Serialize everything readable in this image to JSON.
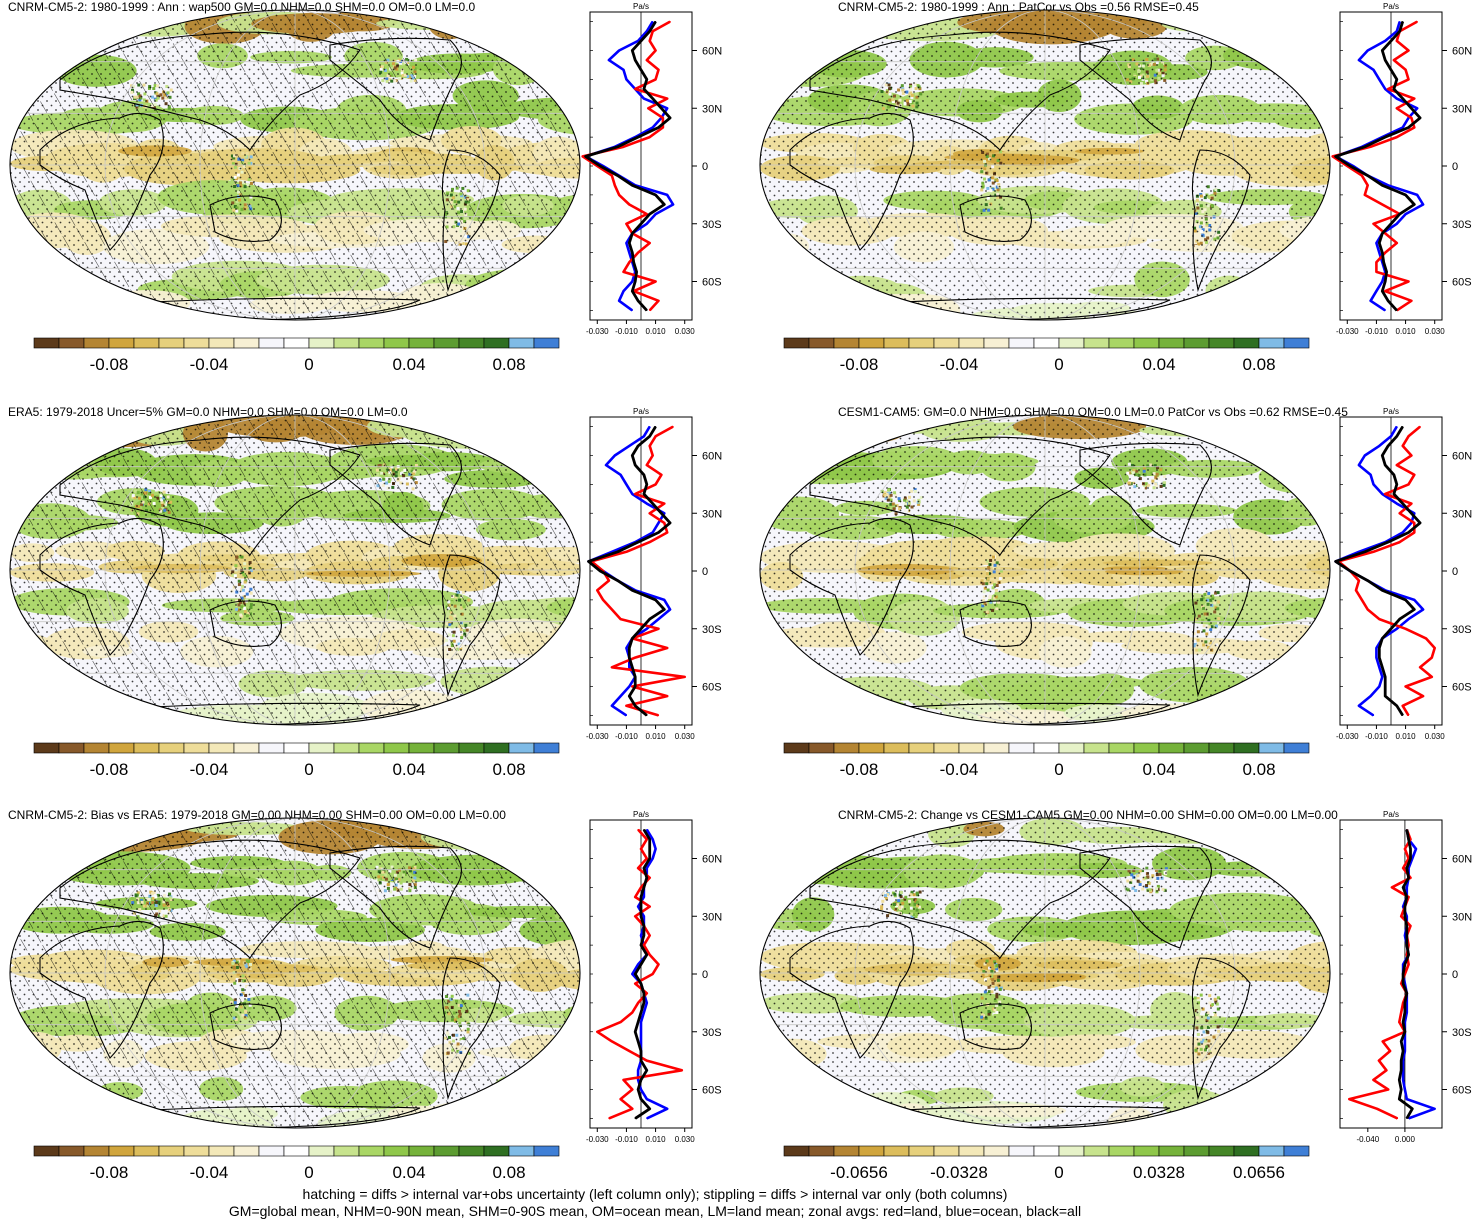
{
  "colors": {
    "palette": [
      "#5c3a1a",
      "#87592a",
      "#b48533",
      "#d0a53d",
      "#dcbd5c",
      "#e6d07c",
      "#eedd9a",
      "#f3e8b8",
      "#f7f0d4",
      "#f6f6fb",
      "#ffffff",
      "#e6f2c8",
      "#c7e38d",
      "#a9d665",
      "#8fc74a",
      "#75b23a",
      "#5c9c31",
      "#458627",
      "#2f6f22",
      "#7fbbe6",
      "#3f7fd6"
    ],
    "land": "#ff0000",
    "ocean": "#0000ff",
    "all": "#000000",
    "coast": "#000000",
    "grid": "#c8c8c8"
  },
  "zonal_unit": "Pa/s",
  "lat_ticks": [
    "60N",
    "30N",
    "0",
    "30S",
    "60S"
  ],
  "zonal_ticks_std": [
    "-0.030",
    "-0.010",
    "0.010",
    "0.030"
  ],
  "zonal_ticks_change": [
    "-0.040",
    "0.000"
  ],
  "colorbar_labels_std": [
    "-0.08",
    "-0.04",
    "0",
    "0.04",
    "0.08"
  ],
  "colorbar_labels_change": [
    "-0.0656",
    "-0.0328",
    "0",
    "0.0328",
    "0.0656"
  ],
  "panels": [
    {
      "title": "CNRM-CM5-2: 1980-1999 : Ann : wap500 GM=0.0 NHM=0.0 SHM=0.0 OM=0.0 LM=0.0",
      "hatch": true,
      "stipple": true
    },
    {
      "title": "CNRM-CM5-2: 1980-1999 : Ann : PatCor vs Obs =0.56 RMSE=0.45",
      "hatch": false,
      "stipple": true
    },
    {
      "title": "ERA5: 1979-2018 Uncer=5% GM=0.0 NHM=0.0 SHM=0.0 OM=0.0 LM=0.0",
      "hatch": true,
      "stipple": true
    },
    {
      "title": "CESM1-CAM5: GM=0.0 NHM=0.0 SHM=0.0 OM=0.0 LM=0.0 PatCor vs Obs =0.62 RMSE=0.45",
      "hatch": false,
      "stipple": true
    },
    {
      "title": "CNRM-CM5-2: Bias vs ERA5: 1979-2018 GM=0.00 NHM=0.00 SHM=0.00 OM=0.00 LM=0.00",
      "hatch": true,
      "stipple": true
    },
    {
      "title": "CNRM-CM5-2: Change vs CESM1-CAM5 GM=0.00 NHM=0.00 SHM=0.00 OM=0.00 LM=0.00",
      "hatch": false,
      "stipple": true
    }
  ],
  "footer": {
    "line1": "hatching = diffs > internal var+obs uncertainty (left column only); stippling = diffs > internal var only (both columns)",
    "line2": "GM=global mean, NHM=0-90N mean, SHM=0-90S mean, OM=ocean mean, LM=land mean; zonal avgs: red=land, blue=ocean, black=all"
  },
  "chart_data": [
    {
      "type": "line",
      "title": "CNRM-CM5-2: 1980-1999 : Ann : wap500 GM=0.0 NHM=0.0 SHM=0.0 OM=0.0 LM=0.0",
      "xlabel": "Pa/s",
      "xlim": [
        -0.035,
        0.035
      ],
      "ylim": [
        -80,
        80
      ],
      "lat": [
        75,
        70,
        65,
        60,
        55,
        50,
        45,
        40,
        35,
        30,
        25,
        20,
        15,
        10,
        5,
        0,
        -5,
        -10,
        -15,
        -20,
        -25,
        -30,
        -35,
        -40,
        -45,
        -50,
        -55,
        -60,
        -65,
        -70,
        -75
      ],
      "series": [
        {
          "name": "land",
          "values": [
            0.02,
            0.008,
            0.006,
            0.01,
            0.004,
            0.012,
            0.01,
            -0.004,
            0.018,
            0.005,
            0.015,
            0.015,
            0.006,
            -0.012,
            -0.04,
            -0.03,
            -0.02,
            -0.018,
            -0.015,
            -0.008,
            0.004,
            -0.01,
            -0.006,
            0.006,
            -0.002,
            -0.008,
            -0.012,
            0.01,
            -0.005,
            0.012,
            0.006
          ]
        },
        {
          "name": "ocean",
          "values": [
            0.008,
            0.004,
            -0.002,
            -0.015,
            -0.022,
            -0.012,
            -0.01,
            -0.004,
            0.002,
            0.018,
            0.014,
            0.008,
            -0.004,
            -0.018,
            -0.038,
            -0.026,
            -0.015,
            -0.004,
            0.018,
            0.022,
            0.01,
            0.004,
            -0.006,
            -0.01,
            -0.008,
            -0.006,
            -0.004,
            -0.006,
            -0.012,
            -0.015,
            -0.006
          ]
        },
        {
          "name": "all",
          "values": [
            0.01,
            0.006,
            0.0,
            -0.006,
            -0.004,
            0.0,
            0.004,
            0.002,
            0.008,
            0.014,
            0.02,
            0.012,
            -0.002,
            -0.016,
            -0.038,
            -0.028,
            -0.016,
            -0.006,
            0.01,
            0.016,
            0.006,
            0.0,
            -0.006,
            -0.008,
            -0.006,
            -0.005,
            -0.003,
            -0.004,
            -0.006,
            -0.002,
            0.004
          ]
        }
      ]
    },
    {
      "type": "line",
      "title": "CNRM-CM5-2: 1980-1999 : Ann : PatCor vs Obs =0.56 RMSE=0.45",
      "xlabel": "Pa/s",
      "xlim": [
        -0.035,
        0.035
      ],
      "ylim": [
        -80,
        80
      ],
      "lat": [
        75,
        70,
        65,
        60,
        55,
        50,
        45,
        40,
        35,
        30,
        25,
        20,
        15,
        10,
        5,
        0,
        -5,
        -10,
        -15,
        -20,
        -25,
        -30,
        -35,
        -40,
        -45,
        -50,
        -55,
        -60,
        -65,
        -70,
        -75
      ],
      "series": [
        {
          "name": "land",
          "values": [
            0.018,
            0.006,
            0.004,
            0.012,
            0.002,
            0.01,
            0.012,
            -0.002,
            0.016,
            0.004,
            0.014,
            0.016,
            0.004,
            -0.014,
            -0.04,
            -0.03,
            -0.02,
            -0.016,
            -0.018,
            -0.006,
            0.006,
            -0.012,
            -0.004,
            0.004,
            -0.004,
            -0.01,
            -0.01,
            0.012,
            -0.004,
            0.014,
            0.004
          ]
        },
        {
          "name": "ocean",
          "values": [
            0.006,
            0.004,
            -0.004,
            -0.016,
            -0.022,
            -0.012,
            -0.008,
            -0.004,
            0.004,
            0.018,
            0.012,
            0.008,
            -0.006,
            -0.02,
            -0.038,
            -0.026,
            -0.016,
            -0.002,
            0.018,
            0.022,
            0.01,
            0.004,
            -0.006,
            -0.01,
            -0.008,
            -0.006,
            -0.004,
            -0.006,
            -0.01,
            -0.014,
            -0.004
          ]
        },
        {
          "name": "all",
          "values": [
            0.008,
            0.006,
            0.0,
            -0.006,
            -0.004,
            0.0,
            0.004,
            0.002,
            0.008,
            0.014,
            0.02,
            0.012,
            -0.004,
            -0.018,
            -0.038,
            -0.028,
            -0.016,
            -0.006,
            0.01,
            0.016,
            0.006,
            0.0,
            -0.006,
            -0.008,
            -0.006,
            -0.005,
            -0.003,
            -0.004,
            -0.006,
            -0.002,
            0.004
          ]
        }
      ]
    },
    {
      "type": "line",
      "title": "ERA5: 1979-2018 Uncer=5% GM=0.0 NHM=0.0 SHM=0.0 OM=0.0 LM=0.0",
      "xlabel": "Pa/s",
      "xlim": [
        -0.035,
        0.035
      ],
      "ylim": [
        -80,
        80
      ],
      "lat": [
        75,
        70,
        65,
        60,
        55,
        50,
        45,
        40,
        35,
        30,
        25,
        20,
        15,
        10,
        5,
        0,
        -5,
        -10,
        -15,
        -20,
        -25,
        -30,
        -35,
        -40,
        -45,
        -50,
        -55,
        -60,
        -65,
        -70,
        -75
      ],
      "series": [
        {
          "name": "land",
          "values": [
            0.022,
            0.01,
            0.006,
            0.008,
            0.004,
            0.014,
            0.01,
            -0.004,
            0.016,
            0.006,
            0.016,
            0.018,
            0.006,
            -0.01,
            -0.034,
            -0.026,
            -0.022,
            -0.03,
            -0.026,
            -0.02,
            -0.014,
            0.012,
            -0.006,
            0.018,
            -0.004,
            -0.02,
            0.03,
            -0.006,
            0.018,
            -0.01,
            0.012
          ]
        },
        {
          "name": "ocean",
          "values": [
            0.006,
            0.002,
            -0.008,
            -0.018,
            -0.024,
            -0.014,
            -0.01,
            -0.006,
            0.004,
            0.016,
            0.012,
            0.008,
            -0.004,
            -0.02,
            -0.036,
            -0.026,
            -0.016,
            -0.004,
            0.016,
            0.02,
            0.012,
            0.004,
            -0.006,
            -0.01,
            -0.008,
            -0.008,
            -0.004,
            -0.008,
            -0.014,
            -0.02,
            -0.01
          ]
        },
        {
          "name": "all",
          "values": [
            0.01,
            0.006,
            -0.002,
            -0.006,
            -0.004,
            0.002,
            0.004,
            0.002,
            0.008,
            0.014,
            0.02,
            0.012,
            -0.002,
            -0.016,
            -0.036,
            -0.028,
            -0.016,
            -0.006,
            0.01,
            0.016,
            0.006,
            0.0,
            -0.006,
            -0.008,
            -0.008,
            -0.006,
            -0.004,
            -0.004,
            -0.008,
            -0.004,
            0.004
          ]
        }
      ]
    },
    {
      "type": "line",
      "title": "CESM1-CAM5: GM=0.0 NHM=0.0 SHM=0.0 OM=0.0 LM=0.0 PatCor vs Obs =0.62 RMSE=0.45",
      "xlabel": "Pa/s",
      "xlim": [
        -0.035,
        0.035
      ],
      "ylim": [
        -80,
        80
      ],
      "lat": [
        75,
        70,
        65,
        60,
        55,
        50,
        45,
        40,
        35,
        30,
        25,
        20,
        15,
        10,
        5,
        0,
        -5,
        -10,
        -15,
        -20,
        -25,
        -30,
        -35,
        -40,
        -45,
        -50,
        -55,
        -60,
        -65,
        -70,
        -75
      ],
      "series": [
        {
          "name": "land",
          "values": [
            0.02,
            0.012,
            0.008,
            0.014,
            0.004,
            0.016,
            0.012,
            -0.004,
            0.014,
            0.006,
            0.016,
            0.016,
            0.006,
            -0.012,
            -0.036,
            -0.028,
            -0.022,
            -0.024,
            -0.02,
            -0.016,
            -0.008,
            0.01,
            0.024,
            0.03,
            0.028,
            0.02,
            0.028,
            0.01,
            0.022,
            0.008,
            0.012
          ]
        },
        {
          "name": "ocean",
          "values": [
            0.004,
            0.0,
            -0.008,
            -0.018,
            -0.022,
            -0.014,
            -0.012,
            -0.006,
            0.004,
            0.016,
            0.014,
            0.008,
            -0.004,
            -0.022,
            -0.038,
            -0.028,
            -0.016,
            -0.004,
            0.016,
            0.022,
            0.012,
            0.004,
            -0.006,
            -0.01,
            -0.01,
            -0.008,
            -0.006,
            -0.008,
            -0.014,
            -0.022,
            -0.012
          ]
        },
        {
          "name": "all",
          "values": [
            0.008,
            0.004,
            -0.002,
            -0.006,
            -0.004,
            0.002,
            0.004,
            0.002,
            0.008,
            0.014,
            0.02,
            0.012,
            -0.002,
            -0.018,
            -0.038,
            -0.028,
            -0.016,
            -0.006,
            0.01,
            0.016,
            0.006,
            0.0,
            -0.006,
            -0.008,
            -0.008,
            -0.006,
            -0.004,
            -0.004,
            -0.004,
            0.004,
            0.008
          ]
        }
      ]
    },
    {
      "type": "line",
      "title": "CNRM-CM5-2: Bias vs ERA5: 1979-2018 GM=0.00 NHM=0.00 SHM=0.00 OM=0.00 LM=0.00",
      "xlabel": "Pa/s",
      "xlim": [
        -0.035,
        0.035
      ],
      "ylim": [
        -80,
        80
      ],
      "lat": [
        75,
        70,
        65,
        60,
        55,
        50,
        45,
        40,
        35,
        30,
        25,
        20,
        15,
        10,
        5,
        0,
        -5,
        -10,
        -15,
        -20,
        -25,
        -30,
        -35,
        -40,
        -45,
        -50,
        -55,
        -60,
        -65,
        -70,
        -75
      ],
      "series": [
        {
          "name": "land",
          "values": [
            -0.002,
            0.004,
            0.0,
            0.004,
            -0.002,
            0.006,
            0.0,
            -0.004,
            0.006,
            -0.004,
            0.002,
            0.006,
            0.002,
            0.006,
            0.012,
            0.008,
            -0.004,
            0.004,
            -0.002,
            -0.006,
            -0.014,
            -0.03,
            -0.02,
            -0.008,
            0.004,
            0.028,
            -0.012,
            -0.006,
            -0.014,
            -0.006,
            -0.022
          ]
        },
        {
          "name": "ocean",
          "values": [
            0.004,
            0.008,
            0.01,
            0.008,
            0.004,
            0.004,
            0.002,
            0.002,
            -0.002,
            0.002,
            0.002,
            0.0,
            0.002,
            0.004,
            -0.002,
            -0.006,
            0.0,
            0.002,
            0.004,
            0.002,
            0.0,
            0.0,
            0.0,
            0.0,
            0.0,
            -0.002,
            -0.002,
            0.0,
            0.004,
            0.018,
            0.004
          ]
        },
        {
          "name": "all",
          "values": [
            0.002,
            0.006,
            0.006,
            0.006,
            0.002,
            0.004,
            0.002,
            0.0,
            0.0,
            0.0,
            0.002,
            0.002,
            0.0,
            0.004,
            0.0,
            -0.004,
            0.0,
            0.002,
            0.002,
            0.0,
            -0.002,
            -0.004,
            -0.002,
            0.0,
            0.0,
            0.004,
            0.0,
            -0.002,
            0.0,
            0.006,
            -0.004
          ]
        }
      ]
    },
    {
      "type": "line",
      "title": "CNRM-CM5-2: Change vs CESM1-CAM5 GM=0.00 NHM=0.00 SHM=0.00 OM=0.00 LM=0.00",
      "xlabel": "Pa/s",
      "xlim": [
        -0.07,
        0.04
      ],
      "ylim": [
        -80,
        80
      ],
      "lat": [
        75,
        70,
        65,
        60,
        55,
        50,
        45,
        40,
        35,
        30,
        25,
        20,
        15,
        10,
        5,
        0,
        -5,
        -10,
        -15,
        -20,
        -25,
        -30,
        -35,
        -40,
        -45,
        -50,
        -55,
        -60,
        -65,
        -70,
        -75
      ],
      "series": [
        {
          "name": "land",
          "values": [
            0.002,
            0.006,
            0.0,
            0.004,
            -0.002,
            0.006,
            -0.014,
            0.004,
            0.0,
            -0.004,
            0.006,
            0.002,
            0.004,
            0.002,
            0.004,
            0.0,
            -0.004,
            0.002,
            -0.002,
            -0.004,
            -0.006,
            0.0,
            -0.024,
            -0.016,
            -0.028,
            -0.02,
            -0.034,
            -0.018,
            -0.06,
            -0.03,
            -0.008
          ]
        },
        {
          "name": "ocean",
          "values": [
            0.002,
            0.004,
            0.012,
            0.008,
            0.004,
            0.004,
            0.002,
            0.002,
            -0.002,
            0.002,
            0.002,
            0.0,
            0.002,
            0.004,
            -0.002,
            -0.002,
            0.0,
            0.002,
            0.002,
            0.002,
            0.0,
            0.0,
            0.0,
            0.0,
            -0.002,
            -0.002,
            -0.002,
            0.0,
            0.002,
            0.032,
            0.004
          ]
        },
        {
          "name": "all",
          "values": [
            0.002,
            0.004,
            0.006,
            0.006,
            0.002,
            0.004,
            -0.002,
            0.002,
            0.0,
            0.0,
            0.002,
            0.002,
            0.002,
            0.004,
            0.0,
            -0.002,
            -0.002,
            0.002,
            0.0,
            0.0,
            -0.002,
            0.0,
            -0.004,
            -0.002,
            -0.004,
            -0.004,
            -0.006,
            -0.004,
            -0.006,
            0.008,
            0.002
          ]
        }
      ]
    }
  ]
}
